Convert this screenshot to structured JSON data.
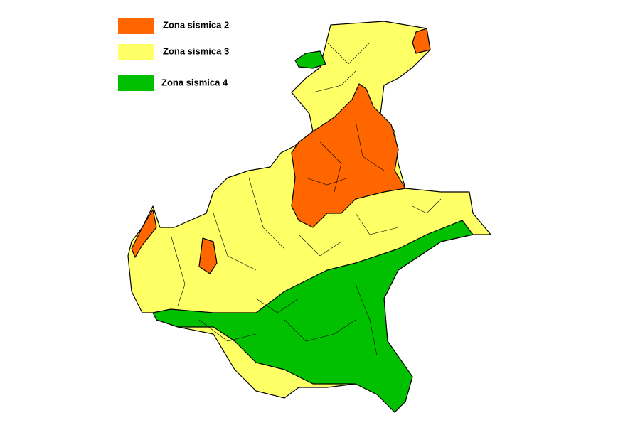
{
  "legend": {
    "items": [
      {
        "label": "Zona sismica 2",
        "color": "#ff6600"
      },
      {
        "label": "Zona sismica 3",
        "color": "#ffff66"
      },
      {
        "label": "Zona sismica 4",
        "color": "#00c000"
      }
    ]
  }
}
